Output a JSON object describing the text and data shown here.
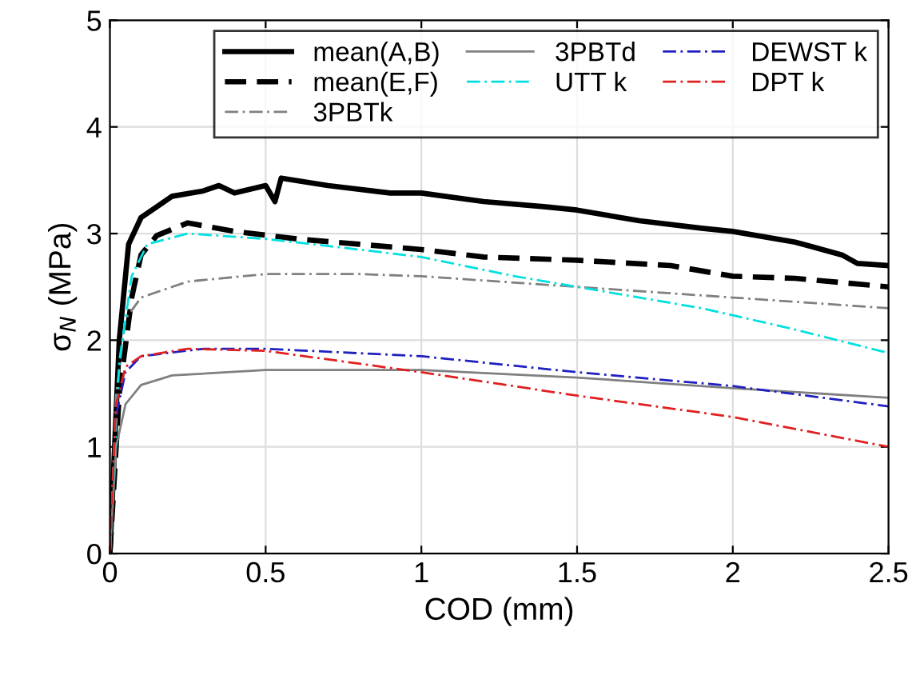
{
  "chart_data": {
    "type": "line",
    "xlabel": "COD (mm)",
    "ylabel": "σ$_{N}$ (MPa)",
    "xlim": [
      0,
      2.5
    ],
    "ylim": [
      0,
      5
    ],
    "xticks": [
      0,
      0.5,
      1,
      1.5,
      2,
      2.5
    ],
    "yticks": [
      0,
      1,
      2,
      3,
      4,
      5
    ],
    "grid": true,
    "legend": "top right",
    "marker": "none",
    "series": [
      {
        "name": "mean(A,B)",
        "color": "#000000",
        "line_style": "solid",
        "x": [
          0,
          0.03,
          0.06,
          0.1,
          0.2,
          0.3,
          0.35,
          0.4,
          0.5,
          0.53,
          0.55,
          0.7,
          0.9,
          1.0,
          1.2,
          1.4,
          1.5,
          1.7,
          1.9,
          2.0,
          2.2,
          2.35,
          2.4,
          2.5
        ],
        "values": [
          0,
          2.0,
          2.9,
          3.15,
          3.35,
          3.4,
          3.45,
          3.38,
          3.45,
          3.3,
          3.52,
          3.45,
          3.38,
          3.38,
          3.3,
          3.25,
          3.22,
          3.12,
          3.05,
          3.02,
          2.92,
          2.8,
          2.72,
          2.7
        ]
      },
      {
        "name": "mean(E,F)",
        "color": "#000000",
        "line_style": "dashed",
        "x": [
          0,
          0.03,
          0.07,
          0.1,
          0.15,
          0.25,
          0.4,
          0.6,
          0.8,
          1.0,
          1.2,
          1.5,
          1.8,
          2.0,
          2.2,
          2.5
        ],
        "values": [
          0,
          1.5,
          2.4,
          2.8,
          2.98,
          3.1,
          3.02,
          2.95,
          2.9,
          2.85,
          2.78,
          2.75,
          2.7,
          2.6,
          2.58,
          2.5
        ]
      },
      {
        "name": "3PBTk",
        "color": "#808080",
        "line_style": "dashdot",
        "x": [
          0,
          0.02,
          0.05,
          0.1,
          0.25,
          0.5,
          0.8,
          1.0,
          1.5,
          2.0,
          2.5
        ],
        "values": [
          0,
          1.5,
          2.2,
          2.4,
          2.55,
          2.62,
          2.62,
          2.6,
          2.5,
          2.4,
          2.3
        ]
      },
      {
        "name": "3PBTd",
        "color": "#808080",
        "line_style": "solid",
        "x": [
          0,
          0.02,
          0.05,
          0.1,
          0.2,
          0.5,
          1.0,
          1.5,
          2.0,
          2.5
        ],
        "values": [
          0,
          1.0,
          1.4,
          1.58,
          1.67,
          1.72,
          1.72,
          1.65,
          1.55,
          1.46
        ]
      },
      {
        "name": "UTT k",
        "color": "#00e0e0",
        "line_style": "dashdot",
        "x": [
          0,
          0.03,
          0.07,
          0.12,
          0.25,
          0.5,
          0.8,
          1.0,
          1.3,
          1.6,
          1.9,
          2.2,
          2.5
        ],
        "values": [
          0,
          1.8,
          2.6,
          2.9,
          3.0,
          2.95,
          2.85,
          2.78,
          2.6,
          2.45,
          2.3,
          2.1,
          1.88
        ]
      },
      {
        "name": "DEWST k",
        "color": "#2020c0",
        "line_style": "dashdot",
        "x": [
          0.02,
          0.05,
          0.1,
          0.3,
          0.5,
          1.0,
          1.5,
          2.0,
          2.5
        ],
        "values": [
          1.3,
          1.7,
          1.85,
          1.92,
          1.92,
          1.85,
          1.7,
          1.57,
          1.38
        ]
      },
      {
        "name": "DPT k",
        "color": "#e02020",
        "line_style": "dashdot",
        "x": [
          0,
          0.02,
          0.05,
          0.1,
          0.25,
          0.5,
          0.8,
          1.0,
          1.5,
          2.0,
          2.5
        ],
        "values": [
          0,
          1.4,
          1.75,
          1.85,
          1.92,
          1.9,
          1.78,
          1.7,
          1.48,
          1.28,
          1.0
        ]
      }
    ]
  }
}
